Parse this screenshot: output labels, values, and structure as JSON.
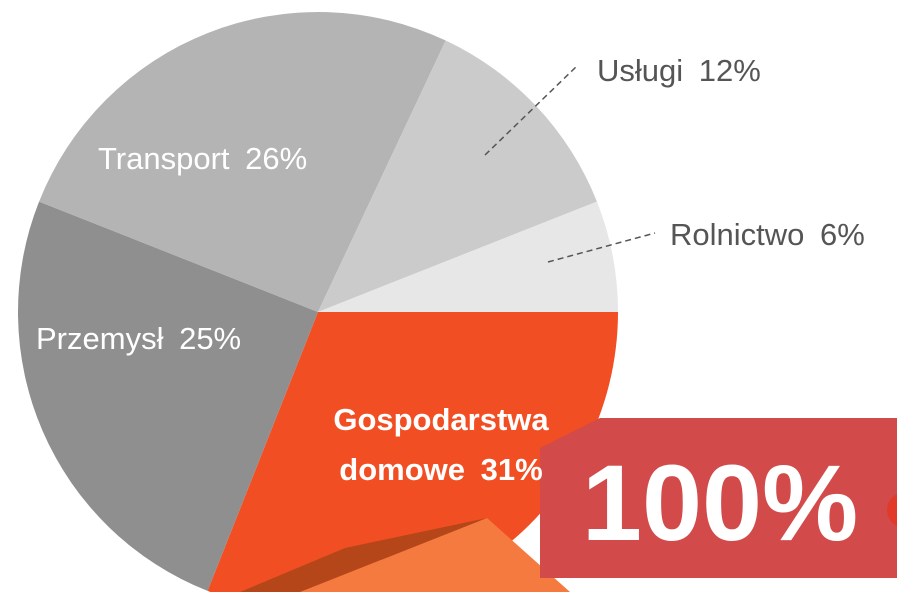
{
  "chart_data": {
    "type": "pie",
    "categories": [
      "Gospodarstwa domowe",
      "Przemysł",
      "Transport",
      "Usługi",
      "Rolnictwo"
    ],
    "values": [
      31,
      25,
      26,
      12,
      6
    ],
    "value_labels": [
      "31%",
      "25%",
      "26%",
      "12%",
      "6%"
    ],
    "colors": [
      "#f24e23",
      "#8f8f8f",
      "#b4b4b4",
      "#cbcbcb",
      "#e7e7e7"
    ],
    "annotation": "100%"
  }
}
